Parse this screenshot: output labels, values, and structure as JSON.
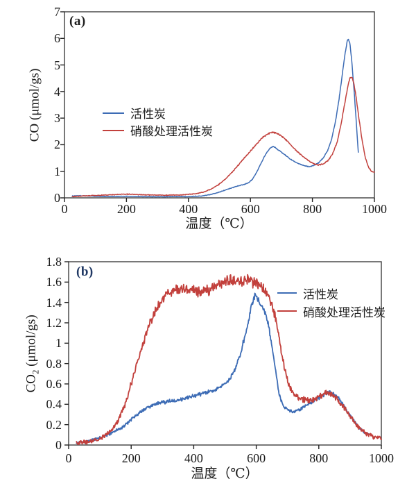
{
  "page": {
    "background": "#ffffff"
  },
  "chart_data": [
    {
      "type": "line",
      "panel_label": "(a)",
      "panel_label_color": "#1c1c1c",
      "title": "",
      "xlabel": "温度（℃）",
      "ylabel": {
        "prefix": "CO",
        "sub": "",
        "suffix": " (μmol/gs)"
      },
      "x_range": [
        0,
        1000
      ],
      "y_range": [
        0,
        7
      ],
      "x_ticks": [
        0,
        200,
        400,
        600,
        800,
        1000
      ],
      "y_ticks": [
        0,
        1,
        2,
        3,
        4,
        5,
        6,
        7
      ],
      "x_tick_labels": [
        "0",
        "200",
        "400",
        "600",
        "800",
        "1000"
      ],
      "y_tick_labels": [
        "0",
        "1",
        "2",
        "3",
        "4",
        "5",
        "6",
        "7"
      ],
      "grid": false,
      "legend_position": "inside-upper-left",
      "series": [
        {
          "name": "活性炭",
          "color": "#3d6cb5",
          "noise_amplitude": 0.018,
          "points": [
            [
              25,
              0.07
            ],
            [
              50,
              0.08
            ],
            [
              75,
              0.07
            ],
            [
              100,
              0.06
            ],
            [
              150,
              0.05
            ],
            [
              200,
              0.06
            ],
            [
              250,
              0.05
            ],
            [
              300,
              0.04
            ],
            [
              350,
              0.05
            ],
            [
              400,
              0.05
            ],
            [
              440,
              0.07
            ],
            [
              470,
              0.12
            ],
            [
              500,
              0.22
            ],
            [
              530,
              0.34
            ],
            [
              560,
              0.45
            ],
            [
              580,
              0.5
            ],
            [
              595,
              0.58
            ],
            [
              605,
              0.68
            ],
            [
              615,
              0.85
            ],
            [
              625,
              1.08
            ],
            [
              635,
              1.32
            ],
            [
              645,
              1.55
            ],
            [
              655,
              1.75
            ],
            [
              665,
              1.88
            ],
            [
              672,
              1.93
            ],
            [
              680,
              1.9
            ],
            [
              690,
              1.8
            ],
            [
              700,
              1.72
            ],
            [
              715,
              1.58
            ],
            [
              730,
              1.45
            ],
            [
              750,
              1.32
            ],
            [
              770,
              1.22
            ],
            [
              790,
              1.17
            ],
            [
              805,
              1.22
            ],
            [
              820,
              1.32
            ],
            [
              835,
              1.5
            ],
            [
              850,
              1.8
            ],
            [
              862,
              2.2
            ],
            [
              875,
              2.9
            ],
            [
              887,
              3.8
            ],
            [
              897,
              4.7
            ],
            [
              905,
              5.4
            ],
            [
              912,
              5.88
            ],
            [
              916,
              6.0
            ],
            [
              921,
              5.8
            ],
            [
              927,
              5.15
            ],
            [
              933,
              4.25
            ],
            [
              939,
              3.3
            ],
            [
              944,
              2.4
            ],
            [
              948,
              1.7
            ]
          ]
        },
        {
          "name": "硝酸处理活性炭",
          "color": "#c2403c",
          "noise_amplitude": 0.022,
          "points": [
            [
              25,
              0.05
            ],
            [
              75,
              0.08
            ],
            [
              125,
              0.1
            ],
            [
              175,
              0.13
            ],
            [
              200,
              0.14
            ],
            [
              225,
              0.13
            ],
            [
              275,
              0.11
            ],
            [
              325,
              0.1
            ],
            [
              375,
              0.11
            ],
            [
              400,
              0.13
            ],
            [
              425,
              0.16
            ],
            [
              450,
              0.22
            ],
            [
              475,
              0.34
            ],
            [
              500,
              0.52
            ],
            [
              520,
              0.72
            ],
            [
              540,
              0.96
            ],
            [
              560,
              1.22
            ],
            [
              580,
              1.5
            ],
            [
              600,
              1.76
            ],
            [
              620,
              2.03
            ],
            [
              640,
              2.28
            ],
            [
              658,
              2.42
            ],
            [
              672,
              2.47
            ],
            [
              685,
              2.43
            ],
            [
              700,
              2.33
            ],
            [
              715,
              2.18
            ],
            [
              730,
              2.0
            ],
            [
              750,
              1.75
            ],
            [
              770,
              1.55
            ],
            [
              790,
              1.38
            ],
            [
              805,
              1.28
            ],
            [
              820,
              1.24
            ],
            [
              835,
              1.28
            ],
            [
              850,
              1.4
            ],
            [
              865,
              1.65
            ],
            [
              880,
              2.1
            ],
            [
              893,
              2.8
            ],
            [
              905,
              3.6
            ],
            [
              915,
              4.25
            ],
            [
              922,
              4.52
            ],
            [
              927,
              4.55
            ],
            [
              933,
              4.35
            ],
            [
              941,
              3.8
            ],
            [
              950,
              3.0
            ],
            [
              960,
              2.2
            ],
            [
              970,
              1.55
            ],
            [
              980,
              1.18
            ],
            [
              990,
              1.0
            ],
            [
              1000,
              0.96
            ]
          ]
        }
      ]
    },
    {
      "type": "line",
      "panel_label": "(b)",
      "panel_label_color": "#203864",
      "title": "",
      "xlabel": "温度（℃）",
      "ylabel": {
        "prefix": "CO",
        "sub": "2",
        "suffix": " (μmol/gs)"
      },
      "x_range": [
        0,
        1000
      ],
      "y_range": [
        0,
        1.8
      ],
      "x_ticks": [
        0,
        200,
        400,
        600,
        800,
        1000
      ],
      "y_ticks": [
        0,
        0.2,
        0.4,
        0.6,
        0.8,
        1,
        1.2,
        1.4,
        1.6,
        1.8
      ],
      "x_tick_labels": [
        "0",
        "200",
        "400",
        "600",
        "800",
        "1000"
      ],
      "y_tick_labels": [
        "0",
        "0.2",
        "0.4",
        "0.6",
        "0.8",
        "1",
        "1.2",
        "1.4",
        "1.6",
        "1.8"
      ],
      "grid": false,
      "legend_position": "inside-upper-right",
      "series": [
        {
          "name": "活性炭",
          "color": "#3d6cb5",
          "noise_amplitude": 0.02,
          "points": [
            [
              25,
              0.02
            ],
            [
              50,
              0.03
            ],
            [
              75,
              0.05
            ],
            [
              100,
              0.07
            ],
            [
              125,
              0.1
            ],
            [
              150,
              0.14
            ],
            [
              175,
              0.18
            ],
            [
              200,
              0.25
            ],
            [
              225,
              0.31
            ],
            [
              250,
              0.37
            ],
            [
              275,
              0.4
            ],
            [
              300,
              0.42
            ],
            [
              325,
              0.43
            ],
            [
              350,
              0.44
            ],
            [
              375,
              0.46
            ],
            [
              400,
              0.48
            ],
            [
              425,
              0.5
            ],
            [
              450,
              0.52
            ],
            [
              475,
              0.55
            ],
            [
              500,
              0.6
            ],
            [
              515,
              0.65
            ],
            [
              530,
              0.73
            ],
            [
              545,
              0.85
            ],
            [
              560,
              1.02
            ],
            [
              572,
              1.18
            ],
            [
              582,
              1.32
            ],
            [
              590,
              1.43
            ],
            [
              597,
              1.47
            ],
            [
              605,
              1.43
            ],
            [
              612,
              1.38
            ],
            [
              620,
              1.35
            ],
            [
              628,
              1.3
            ],
            [
              636,
              1.22
            ],
            [
              645,
              1.08
            ],
            [
              654,
              0.9
            ],
            [
              663,
              0.7
            ],
            [
              672,
              0.52
            ],
            [
              681,
              0.42
            ],
            [
              690,
              0.37
            ],
            [
              700,
              0.34
            ],
            [
              715,
              0.33
            ],
            [
              730,
              0.34
            ],
            [
              745,
              0.36
            ],
            [
              765,
              0.4
            ],
            [
              785,
              0.44
            ],
            [
              805,
              0.47
            ],
            [
              820,
              0.5
            ],
            [
              833,
              0.52
            ],
            [
              848,
              0.5
            ],
            [
              863,
              0.46
            ],
            [
              880,
              0.39
            ],
            [
              898,
              0.3
            ],
            [
              915,
              0.23
            ],
            [
              932,
              0.16
            ],
            [
              948,
              0.12
            ],
            [
              960,
              0.11
            ]
          ]
        },
        {
          "name": "硝酸处理活性炭",
          "color": "#c2403c",
          "noise_amplitude": 0.032,
          "points": [
            [
              25,
              0.02
            ],
            [
              60,
              0.03
            ],
            [
              90,
              0.05
            ],
            [
              115,
              0.09
            ],
            [
              140,
              0.15
            ],
            [
              160,
              0.24
            ],
            [
              180,
              0.4
            ],
            [
              200,
              0.6
            ],
            [
              220,
              0.82
            ],
            [
              240,
              1.02
            ],
            [
              260,
              1.2
            ],
            [
              280,
              1.33
            ],
            [
              300,
              1.43
            ],
            [
              320,
              1.49
            ],
            [
              340,
              1.52
            ],
            [
              360,
              1.54
            ],
            [
              380,
              1.53
            ],
            [
              400,
              1.52
            ],
            [
              420,
              1.5
            ],
            [
              440,
              1.51
            ],
            [
              460,
              1.54
            ],
            [
              480,
              1.58
            ],
            [
              500,
              1.61
            ],
            [
              520,
              1.62
            ],
            [
              540,
              1.6
            ],
            [
              560,
              1.61
            ],
            [
              575,
              1.63
            ],
            [
              590,
              1.6
            ],
            [
              605,
              1.58
            ],
            [
              620,
              1.55
            ],
            [
              632,
              1.5
            ],
            [
              644,
              1.43
            ],
            [
              656,
              1.32
            ],
            [
              666,
              1.18
            ],
            [
              675,
              1.02
            ],
            [
              684,
              0.85
            ],
            [
              693,
              0.72
            ],
            [
              702,
              0.62
            ],
            [
              712,
              0.54
            ],
            [
              725,
              0.48
            ],
            [
              740,
              0.45
            ],
            [
              760,
              0.44
            ],
            [
              780,
              0.45
            ],
            [
              800,
              0.47
            ],
            [
              818,
              0.5
            ],
            [
              833,
              0.51
            ],
            [
              848,
              0.48
            ],
            [
              865,
              0.43
            ],
            [
              882,
              0.36
            ],
            [
              900,
              0.28
            ],
            [
              918,
              0.21
            ],
            [
              935,
              0.15
            ],
            [
              952,
              0.11
            ],
            [
              975,
              0.08
            ],
            [
              1000,
              0.07
            ]
          ]
        }
      ]
    }
  ]
}
